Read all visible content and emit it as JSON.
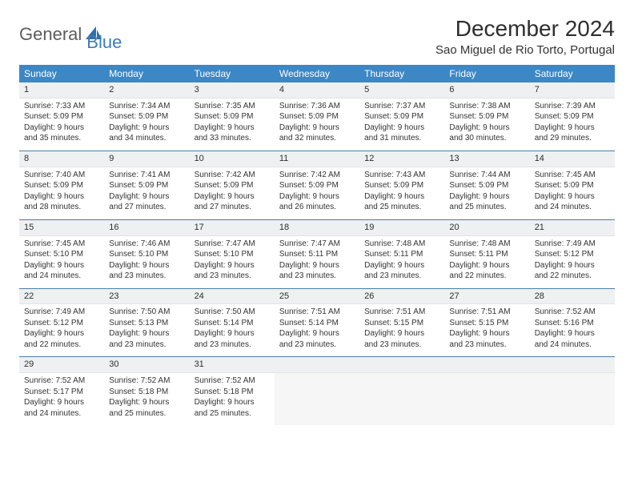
{
  "logo": {
    "word1": "General",
    "word2": "Blue"
  },
  "title": "December 2024",
  "location": "Sao Miguel de Rio Torto, Portugal",
  "colors": {
    "header_bg": "#3d87c4",
    "header_text": "#ffffff",
    "daynum_bg": "#eef0f1",
    "row_border": "#4a7ea8",
    "cell_border": "#e2e2e2",
    "text": "#333333",
    "logo_gray": "#5c5c5c",
    "logo_blue": "#3d7cb8"
  },
  "layout": {
    "cols": 7,
    "rows": 5,
    "cell_fontsize": 10,
    "header_fontsize": 12
  },
  "weekdays": [
    "Sunday",
    "Monday",
    "Tuesday",
    "Wednesday",
    "Thursday",
    "Friday",
    "Saturday"
  ],
  "weeks": [
    [
      {
        "n": "1",
        "sr": "7:33 AM",
        "ss": "5:09 PM",
        "dl": "9 hours and 35 minutes."
      },
      {
        "n": "2",
        "sr": "7:34 AM",
        "ss": "5:09 PM",
        "dl": "9 hours and 34 minutes."
      },
      {
        "n": "3",
        "sr": "7:35 AM",
        "ss": "5:09 PM",
        "dl": "9 hours and 33 minutes."
      },
      {
        "n": "4",
        "sr": "7:36 AM",
        "ss": "5:09 PM",
        "dl": "9 hours and 32 minutes."
      },
      {
        "n": "5",
        "sr": "7:37 AM",
        "ss": "5:09 PM",
        "dl": "9 hours and 31 minutes."
      },
      {
        "n": "6",
        "sr": "7:38 AM",
        "ss": "5:09 PM",
        "dl": "9 hours and 30 minutes."
      },
      {
        "n": "7",
        "sr": "7:39 AM",
        "ss": "5:09 PM",
        "dl": "9 hours and 29 minutes."
      }
    ],
    [
      {
        "n": "8",
        "sr": "7:40 AM",
        "ss": "5:09 PM",
        "dl": "9 hours and 28 minutes."
      },
      {
        "n": "9",
        "sr": "7:41 AM",
        "ss": "5:09 PM",
        "dl": "9 hours and 27 minutes."
      },
      {
        "n": "10",
        "sr": "7:42 AM",
        "ss": "5:09 PM",
        "dl": "9 hours and 27 minutes."
      },
      {
        "n": "11",
        "sr": "7:42 AM",
        "ss": "5:09 PM",
        "dl": "9 hours and 26 minutes."
      },
      {
        "n": "12",
        "sr": "7:43 AM",
        "ss": "5:09 PM",
        "dl": "9 hours and 25 minutes."
      },
      {
        "n": "13",
        "sr": "7:44 AM",
        "ss": "5:09 PM",
        "dl": "9 hours and 25 minutes."
      },
      {
        "n": "14",
        "sr": "7:45 AM",
        "ss": "5:09 PM",
        "dl": "9 hours and 24 minutes."
      }
    ],
    [
      {
        "n": "15",
        "sr": "7:45 AM",
        "ss": "5:10 PM",
        "dl": "9 hours and 24 minutes."
      },
      {
        "n": "16",
        "sr": "7:46 AM",
        "ss": "5:10 PM",
        "dl": "9 hours and 23 minutes."
      },
      {
        "n": "17",
        "sr": "7:47 AM",
        "ss": "5:10 PM",
        "dl": "9 hours and 23 minutes."
      },
      {
        "n": "18",
        "sr": "7:47 AM",
        "ss": "5:11 PM",
        "dl": "9 hours and 23 minutes."
      },
      {
        "n": "19",
        "sr": "7:48 AM",
        "ss": "5:11 PM",
        "dl": "9 hours and 23 minutes."
      },
      {
        "n": "20",
        "sr": "7:48 AM",
        "ss": "5:11 PM",
        "dl": "9 hours and 22 minutes."
      },
      {
        "n": "21",
        "sr": "7:49 AM",
        "ss": "5:12 PM",
        "dl": "9 hours and 22 minutes."
      }
    ],
    [
      {
        "n": "22",
        "sr": "7:49 AM",
        "ss": "5:12 PM",
        "dl": "9 hours and 22 minutes."
      },
      {
        "n": "23",
        "sr": "7:50 AM",
        "ss": "5:13 PM",
        "dl": "9 hours and 23 minutes."
      },
      {
        "n": "24",
        "sr": "7:50 AM",
        "ss": "5:14 PM",
        "dl": "9 hours and 23 minutes."
      },
      {
        "n": "25",
        "sr": "7:51 AM",
        "ss": "5:14 PM",
        "dl": "9 hours and 23 minutes."
      },
      {
        "n": "26",
        "sr": "7:51 AM",
        "ss": "5:15 PM",
        "dl": "9 hours and 23 minutes."
      },
      {
        "n": "27",
        "sr": "7:51 AM",
        "ss": "5:15 PM",
        "dl": "9 hours and 23 minutes."
      },
      {
        "n": "28",
        "sr": "7:52 AM",
        "ss": "5:16 PM",
        "dl": "9 hours and 24 minutes."
      }
    ],
    [
      {
        "n": "29",
        "sr": "7:52 AM",
        "ss": "5:17 PM",
        "dl": "9 hours and 24 minutes."
      },
      {
        "n": "30",
        "sr": "7:52 AM",
        "ss": "5:18 PM",
        "dl": "9 hours and 25 minutes."
      },
      {
        "n": "31",
        "sr": "7:52 AM",
        "ss": "5:18 PM",
        "dl": "9 hours and 25 minutes."
      },
      null,
      null,
      null,
      null
    ]
  ],
  "labels": {
    "sunrise": "Sunrise:",
    "sunset": "Sunset:",
    "daylight": "Daylight:"
  }
}
